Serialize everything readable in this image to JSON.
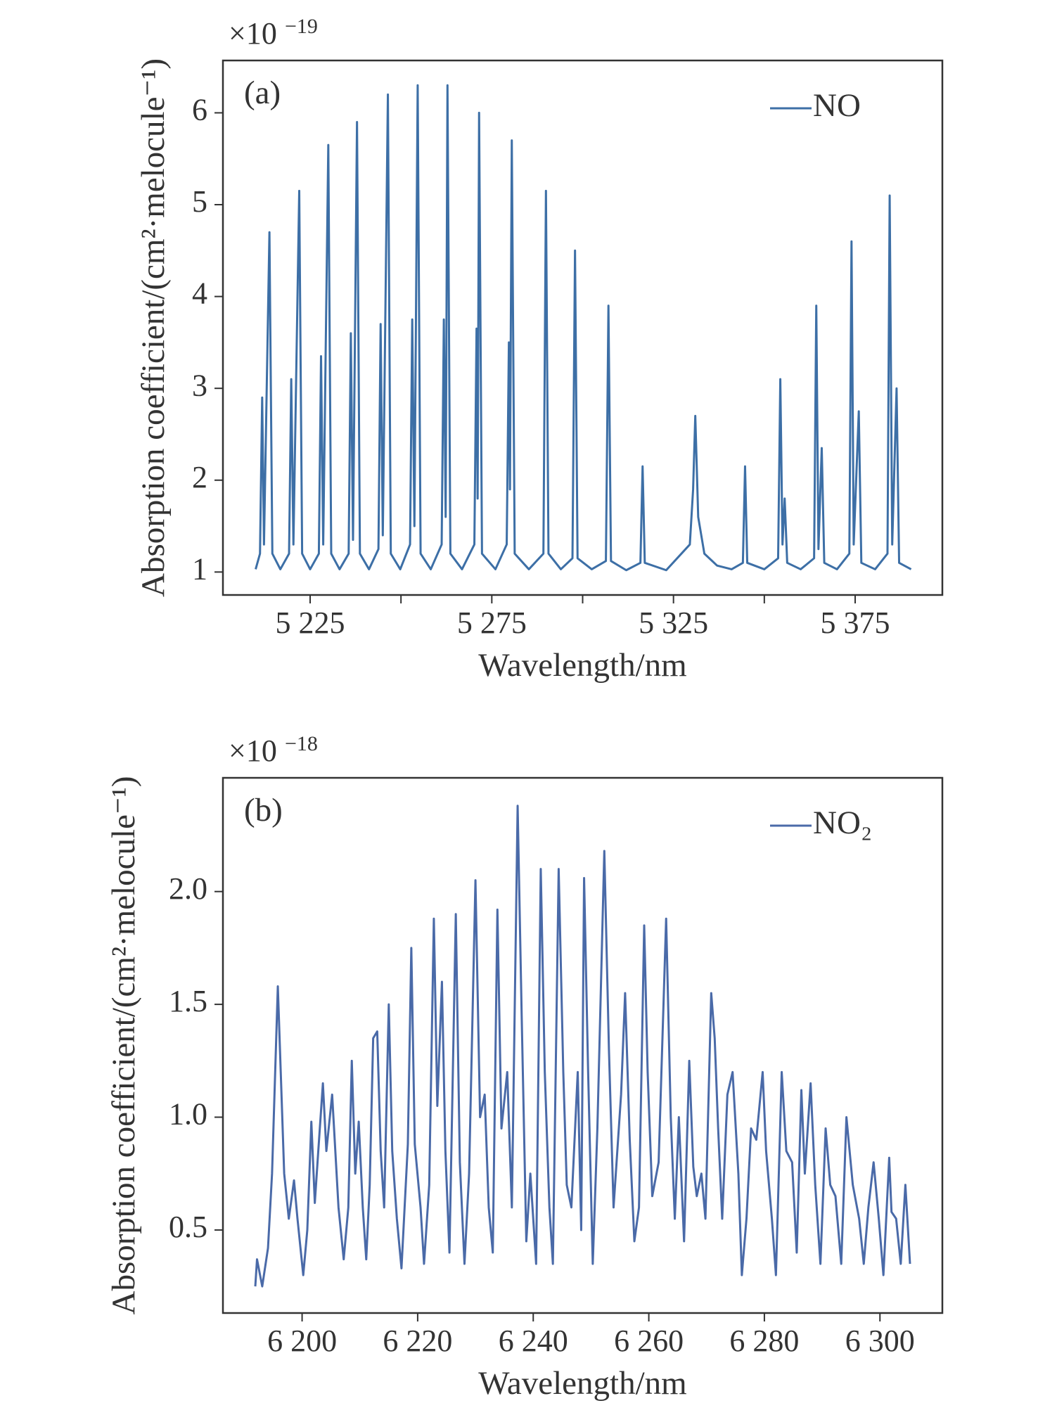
{
  "chart_data": [
    {
      "type": "line",
      "panel_label": "(a)",
      "scale_label": "×10",
      "scale_exponent": "−19",
      "xlabel": "Wavelength/nm",
      "ylabel": "Absorption coefficient/(cm²·melocule⁻¹)",
      "legend": "upper right",
      "xlim": [
        5201,
        5399
      ],
      "ylim": [
        0.75,
        6.57
      ],
      "xticks": [
        {
          "value": 5225,
          "label": "5 225"
        },
        {
          "value": 5275,
          "label": "5 275"
        },
        {
          "value": 5325,
          "label": "5 325"
        },
        {
          "value": 5375,
          "label": "5 375"
        }
      ],
      "xminor": [
        5250,
        5300,
        5350
      ],
      "yticks": [
        1,
        2,
        3,
        4,
        5,
        6
      ],
      "x": [
        5210,
        5211.2,
        5211.8,
        5212.3,
        5213.8,
        5214.6,
        5216.8,
        5219.2,
        5219.8,
        5220.4,
        5222.0,
        5222.8,
        5225.0,
        5227.4,
        5228.0,
        5228.6,
        5230.0,
        5230.8,
        5233.1,
        5235.6,
        5236.2,
        5236.8,
        5237.9,
        5238.7,
        5241.2,
        5243.8,
        5244.4,
        5245.0,
        5246.4,
        5247.2,
        5249.8,
        5252.5,
        5253.1,
        5253.7,
        5254.6,
        5255.4,
        5258.2,
        5261.2,
        5261.8,
        5262.3,
        5262.8,
        5263.6,
        5266.8,
        5270.2,
        5270.8,
        5271.1,
        5271.5,
        5272.3,
        5276.0,
        5279.1,
        5279.7,
        5280.0,
        5280.5,
        5281.3,
        5285.2,
        5289.2,
        5289.9,
        5290.6,
        5294.0,
        5297.2,
        5297.9,
        5298.6,
        5302.5,
        5306.4,
        5307.1,
        5307.8,
        5312.0,
        5315.9,
        5316.5,
        5317.1,
        5323,
        5329.5,
        5330.4,
        5331.0,
        5331.8,
        5333.5,
        5337,
        5341,
        5344.1,
        5344.7,
        5345.3,
        5350,
        5353.8,
        5354.4,
        5355.0,
        5355.6,
        5356.3,
        5360,
        5363.7,
        5364.3,
        5364.9,
        5365.8,
        5366.5,
        5370,
        5373.4,
        5374.0,
        5374.6,
        5376.0,
        5376.7,
        5380.5,
        5383.9,
        5384.5,
        5385.2,
        5386.4,
        5387.1,
        5390.4
      ],
      "series": [
        {
          "name": "NO",
          "color": "#3d6fa6",
          "values": [
            1.03,
            1.2,
            2.9,
            1.3,
            4.7,
            1.2,
            1.03,
            1.2,
            3.1,
            1.3,
            5.15,
            1.2,
            1.03,
            1.2,
            3.35,
            1.3,
            5.65,
            1.2,
            1.03,
            1.2,
            3.6,
            1.35,
            5.9,
            1.2,
            1.03,
            1.25,
            3.7,
            1.4,
            6.2,
            1.2,
            1.03,
            1.3,
            3.75,
            1.5,
            6.3,
            1.2,
            1.03,
            1.3,
            3.75,
            1.6,
            6.3,
            1.2,
            1.03,
            1.3,
            3.65,
            1.8,
            6.0,
            1.2,
            1.03,
            1.3,
            3.5,
            1.9,
            5.7,
            1.2,
            1.03,
            1.2,
            5.15,
            1.2,
            1.03,
            1.15,
            4.5,
            1.15,
            1.03,
            1.12,
            3.9,
            1.12,
            1.02,
            1.1,
            2.15,
            1.1,
            1.02,
            1.3,
            1.9,
            2.7,
            1.6,
            1.2,
            1.07,
            1.03,
            1.1,
            2.15,
            1.1,
            1.03,
            1.15,
            3.1,
            1.3,
            1.8,
            1.1,
            1.03,
            1.15,
            3.9,
            1.25,
            2.35,
            1.1,
            1.03,
            1.2,
            4.6,
            1.3,
            2.75,
            1.1,
            1.03,
            1.2,
            5.1,
            1.3,
            3.0,
            1.1,
            1.03
          ]
        }
      ]
    },
    {
      "type": "line",
      "panel_label": "(b)",
      "scale_label": "×10",
      "scale_exponent": "−18",
      "xlabel": "Wavelength/nm",
      "ylabel": "Absorption coefficient/(cm²·melocule⁻¹)",
      "legend": "upper right",
      "xlim": [
        6186.3,
        6310.8
      ],
      "ylim": [
        0.132,
        2.504
      ],
      "xticks": [
        {
          "value": 6200,
          "label": "6 200"
        },
        {
          "value": 6220,
          "label": "6 220"
        },
        {
          "value": 6240,
          "label": "6 240"
        },
        {
          "value": 6260,
          "label": "6 260"
        },
        {
          "value": 6280,
          "label": "6 280"
        },
        {
          "value": 6300,
          "label": "6 300"
        }
      ],
      "yticks": [
        0.5,
        {
          "value": 1,
          "label": "1.0"
        },
        1.5,
        {
          "value": 2,
          "label": "2.0"
        }
      ],
      "x": [
        6191.9,
        6192.2,
        6193.1,
        6194.1,
        6194.8,
        6195.8,
        6196.9,
        6197.7,
        6198.6,
        6199.2,
        6200.2,
        6200.9,
        6201.6,
        6202.2,
        6202.8,
        6203.6,
        6204.2,
        6205.2,
        6206.3,
        6207.2,
        6208.0,
        6208.6,
        6209.2,
        6209.8,
        6210.5,
        6211.1,
        6211.7,
        6212.3,
        6213.0,
        6213.6,
        6214.2,
        6215.0,
        6215.6,
        6216.4,
        6217.2,
        6218.3,
        6218.9,
        6219.5,
        6220.5,
        6221.1,
        6222.0,
        6222.8,
        6223.4,
        6224.2,
        6224.8,
        6225.5,
        6226.6,
        6227.3,
        6228.1,
        6228.9,
        6230.0,
        6230.8,
        6231.6,
        6232.3,
        6233.0,
        6233.8,
        6234.5,
        6235.5,
        6236.3,
        6237.3,
        6238.0,
        6238.8,
        6239.5,
        6240.5,
        6241.3,
        6242.0,
        6242.8,
        6243.4,
        6244.4,
        6245.2,
        6245.8,
        6246.6,
        6247.7,
        6248.3,
        6248.8,
        6249.5,
        6250.3,
        6251.1,
        6252.3,
        6253.1,
        6253.9,
        6255.2,
        6255.9,
        6256.7,
        6257.5,
        6258.3,
        6259.2,
        6259.8,
        6260.6,
        6261.7,
        6263.0,
        6263.8,
        6264.5,
        6265.2,
        6266.1,
        6267.0,
        6267.7,
        6268.3,
        6269.1,
        6269.8,
        6270.8,
        6271.4,
        6272.0,
        6272.7,
        6273.6,
        6274.5,
        6275.5,
        6276.1,
        6276.9,
        6277.7,
        6278.6,
        6279.7,
        6280.3,
        6281.3,
        6282.0,
        6283.0,
        6283.8,
        6284.8,
        6285.6,
        6286.4,
        6287.0,
        6288.0,
        6288.8,
        6289.7,
        6290.6,
        6291.4,
        6292.3,
        6293.3,
        6294.2,
        6295.3,
        6296.4,
        6297.2,
        6298.0,
        6298.9,
        6299.8,
        6300.6,
        6301.6,
        6302.0,
        6302.8,
        6303.6,
        6304.4,
        6305.2
      ],
      "series": [
        {
          "name": "NO₂",
          "color": "#4a6aa8",
          "values": [
            0.25,
            0.37,
            0.25,
            0.42,
            0.75,
            1.58,
            0.75,
            0.55,
            0.72,
            0.55,
            0.3,
            0.5,
            0.98,
            0.62,
            0.85,
            1.15,
            0.85,
            1.1,
            0.6,
            0.37,
            0.6,
            1.25,
            0.75,
            0.98,
            0.6,
            0.37,
            0.7,
            1.35,
            1.38,
            0.85,
            0.6,
            1.5,
            0.85,
            0.55,
            0.33,
            0.88,
            1.75,
            0.88,
            0.6,
            0.35,
            0.7,
            1.88,
            1.05,
            1.6,
            0.85,
            0.4,
            1.9,
            0.8,
            0.35,
            0.75,
            2.05,
            1.0,
            1.1,
            0.6,
            0.4,
            1.92,
            0.95,
            1.2,
            0.6,
            2.38,
            1.45,
            0.45,
            0.75,
            0.35,
            2.1,
            1.2,
            0.6,
            0.35,
            2.1,
            1.2,
            0.7,
            0.6,
            1.2,
            0.5,
            2.06,
            1.2,
            0.35,
            0.95,
            2.18,
            1.3,
            0.6,
            1.1,
            1.55,
            0.9,
            0.45,
            0.6,
            1.85,
            1.2,
            0.65,
            0.8,
            1.88,
            1.0,
            0.55,
            1.0,
            0.45,
            1.25,
            0.78,
            0.65,
            0.75,
            0.55,
            1.55,
            1.35,
            0.95,
            0.55,
            1.1,
            1.2,
            0.75,
            0.3,
            0.55,
            0.95,
            0.9,
            1.2,
            0.85,
            0.55,
            0.3,
            1.2,
            0.85,
            0.8,
            0.4,
            1.12,
            0.75,
            1.15,
            0.7,
            0.35,
            0.95,
            0.7,
            0.65,
            0.35,
            1.0,
            0.7,
            0.55,
            0.35,
            0.6,
            0.8,
            0.55,
            0.3,
            0.82,
            0.58,
            0.55,
            0.35,
            0.7,
            0.35
          ]
        }
      ]
    }
  ]
}
